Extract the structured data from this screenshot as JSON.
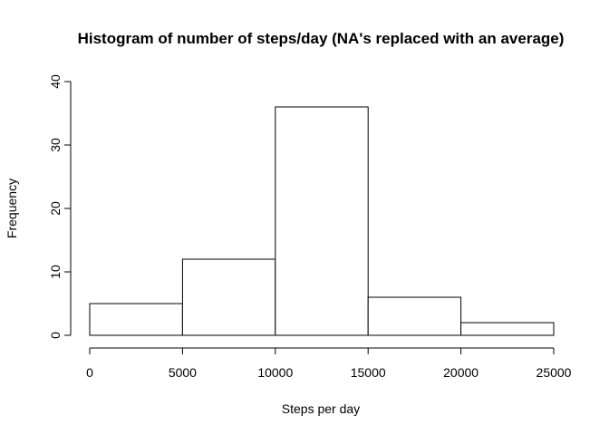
{
  "chart_data": {
    "type": "bar",
    "title": "Histogram of number of steps/day (NA's replaced with an average)",
    "xlabel": "Steps per day",
    "ylabel": "Frequency",
    "bins": [
      {
        "start": 0,
        "end": 5000,
        "count": 5
      },
      {
        "start": 5000,
        "end": 10000,
        "count": 12
      },
      {
        "start": 10000,
        "end": 15000,
        "count": 36
      },
      {
        "start": 15000,
        "end": 20000,
        "count": 6
      },
      {
        "start": 20000,
        "end": 25000,
        "count": 2
      }
    ],
    "xlim": [
      0,
      25000
    ],
    "ylim": [
      0,
      40
    ],
    "xticks": [
      0,
      5000,
      10000,
      15000,
      20000,
      25000
    ],
    "yticks": [
      0,
      10,
      20,
      30,
      40
    ],
    "grid": false,
    "bar_fill": "#ffffff",
    "bar_stroke": "#000000"
  }
}
